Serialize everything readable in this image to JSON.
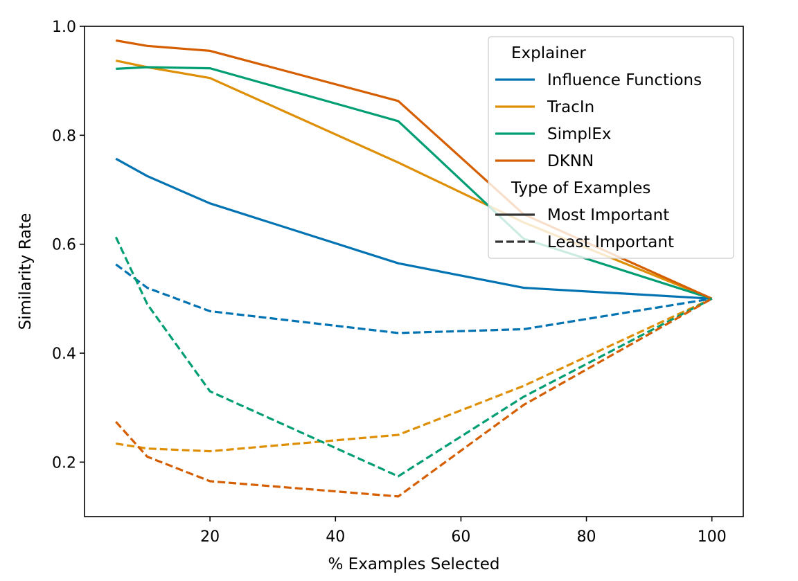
{
  "chart_data": {
    "type": "line",
    "xlabel": "% Examples Selected",
    "ylabel": "Similarity Rate",
    "xlim": [
      0,
      105
    ],
    "ylim": [
      0.1,
      1.0
    ],
    "x_ticks": [
      20,
      40,
      60,
      80,
      100
    ],
    "y_ticks": [
      0.2,
      0.4,
      0.6,
      0.8,
      1.0
    ],
    "x_tick_labels": [
      "20",
      "40",
      "60",
      "80",
      "100"
    ],
    "y_tick_labels": [
      "0.2",
      "0.4",
      "0.6",
      "0.8",
      "1.0"
    ],
    "grid": false,
    "legend_position": "top-right",
    "legend": {
      "explainer_title": "Explainer",
      "explainer_entries": [
        {
          "name": "Influence Functions",
          "color": "#0173b2"
        },
        {
          "name": "TracIn",
          "color": "#de8f05"
        },
        {
          "name": "SimplEx",
          "color": "#029e73"
        },
        {
          "name": "DKNN",
          "color": "#d55e00"
        }
      ],
      "type_title": "Type of Examples",
      "type_entries": [
        {
          "name": "Most Important",
          "style": "solid"
        },
        {
          "name": "Least Important",
          "style": "dashed"
        }
      ]
    },
    "x": [
      5,
      10,
      20,
      50,
      70,
      100
    ],
    "series": [
      {
        "explainer": "Influence Functions",
        "type": "Most Important",
        "color": "#0173b2",
        "style": "solid",
        "values": [
          0.757,
          0.725,
          0.675,
          0.565,
          0.52,
          0.5
        ]
      },
      {
        "explainer": "TracIn",
        "type": "Most Important",
        "color": "#de8f05",
        "style": "solid",
        "values": [
          0.937,
          0.925,
          0.905,
          0.75,
          0.64,
          0.5
        ]
      },
      {
        "explainer": "SimplEx",
        "type": "Most Important",
        "color": "#029e73",
        "style": "solid",
        "values": [
          0.922,
          0.925,
          0.923,
          0.826,
          0.61,
          0.5
        ]
      },
      {
        "explainer": "DKNN",
        "type": "Most Important",
        "color": "#d55e00",
        "style": "solid",
        "values": [
          0.974,
          0.964,
          0.955,
          0.863,
          0.655,
          0.5
        ]
      },
      {
        "explainer": "Influence Functions",
        "type": "Least Important",
        "color": "#0173b2",
        "style": "dashed",
        "values": [
          0.563,
          0.52,
          0.477,
          0.437,
          0.444,
          0.5
        ]
      },
      {
        "explainer": "TracIn",
        "type": "Least Important",
        "color": "#de8f05",
        "style": "dashed",
        "values": [
          0.234,
          0.225,
          0.22,
          0.25,
          0.34,
          0.5
        ]
      },
      {
        "explainer": "SimplEx",
        "type": "Least Important",
        "color": "#029e73",
        "style": "dashed",
        "values": [
          0.613,
          0.49,
          0.33,
          0.174,
          0.32,
          0.5
        ]
      },
      {
        "explainer": "DKNN",
        "type": "Least Important",
        "color": "#d55e00",
        "style": "dashed",
        "values": [
          0.274,
          0.21,
          0.165,
          0.137,
          0.305,
          0.5
        ]
      }
    ]
  }
}
